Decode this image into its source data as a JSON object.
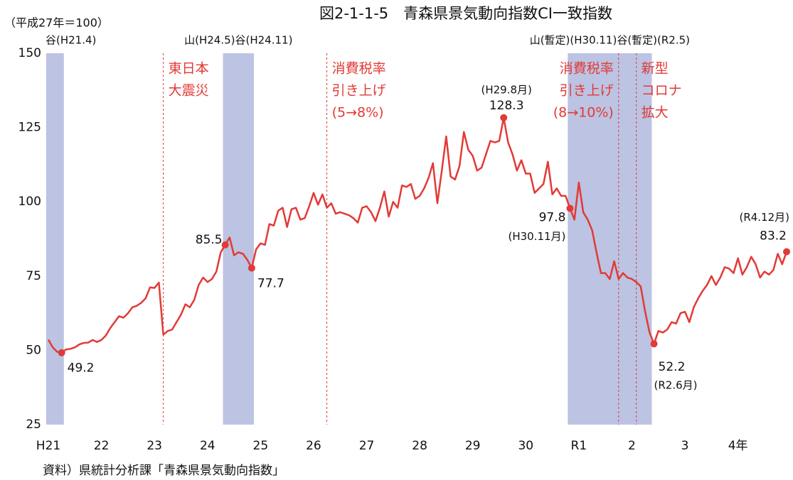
{
  "chart_data": {
    "type": "line",
    "title": "図2-1-1-5　青森県景気動向指数CI一致指数",
    "unit_label": "（平成27年＝100）",
    "source": "資料）県統計分析課「青森県景気動向指数」",
    "color": "#e23a36",
    "categories": [
      "H21",
      null,
      null,
      null,
      null,
      null,
      null,
      null,
      null,
      null,
      null,
      null,
      "22",
      null,
      null,
      null,
      null,
      null,
      null,
      null,
      null,
      null,
      null,
      null,
      "23",
      null,
      null,
      null,
      null,
      null,
      null,
      null,
      null,
      null,
      null,
      null,
      "24",
      null,
      null,
      null,
      null,
      null,
      null,
      null,
      null,
      null,
      null,
      null,
      "25",
      null,
      null,
      null,
      null,
      null,
      null,
      null,
      null,
      null,
      null,
      null,
      "26",
      null,
      null,
      null,
      null,
      null,
      null,
      null,
      null,
      null,
      null,
      null,
      "27",
      null,
      null,
      null,
      null,
      null,
      null,
      null,
      null,
      null,
      null,
      null,
      "28",
      null,
      null,
      null,
      null,
      null,
      null,
      null,
      null,
      null,
      null,
      null,
      "29",
      null,
      null,
      null,
      null,
      null,
      null,
      null,
      null,
      null,
      null,
      null,
      "30",
      null,
      null,
      null,
      null,
      null,
      null,
      null,
      null,
      null,
      null,
      null,
      "R1",
      null,
      null,
      null,
      null,
      null,
      null,
      null,
      null,
      null,
      null,
      null,
      "2",
      null,
      null,
      null,
      null,
      null,
      null,
      null,
      null,
      null,
      null,
      null,
      "3",
      null,
      null,
      null,
      null,
      null,
      null,
      null,
      null,
      null,
      null,
      null,
      "4年",
      null,
      null,
      null,
      null,
      null,
      null,
      null,
      null,
      null,
      null,
      null
    ],
    "values": [
      53.6,
      51.0,
      49.5,
      49.2,
      50.3,
      50.5,
      51.0,
      52.0,
      52.5,
      52.6,
      53.5,
      52.8,
      53.5,
      55.0,
      57.5,
      59.5,
      61.5,
      61.0,
      62.5,
      64.5,
      65.0,
      66.0,
      67.5,
      71.2,
      71.0,
      72.8,
      55.3,
      56.5,
      57.0,
      59.5,
      62.0,
      65.5,
      64.5,
      67.0,
      72.0,
      74.5,
      73.0,
      74.0,
      76.5,
      83.0,
      85.5,
      88.0,
      82.0,
      83.0,
      82.5,
      80.5,
      77.7,
      84.0,
      86.0,
      85.5,
      92.5,
      92.0,
      97.0,
      98.0,
      91.5,
      97.5,
      98.0,
      94.0,
      94.5,
      98.5,
      103.0,
      99.0,
      102.5,
      98.0,
      99.5,
      96.0,
      96.5,
      96.0,
      95.5,
      94.5,
      93.0,
      98.0,
      98.5,
      96.5,
      93.5,
      98.0,
      103.5,
      95.0,
      100.0,
      98.0,
      105.5,
      105.0,
      106.0,
      101.0,
      102.0,
      104.5,
      108.0,
      113.0,
      99.5,
      110.5,
      122.0,
      108.5,
      107.5,
      112.0,
      123.5,
      117.5,
      115.5,
      110.5,
      111.5,
      116.0,
      120.5,
      120.0,
      120.5,
      128.3,
      120.0,
      116.0,
      110.5,
      114.0,
      109.5,
      109.5,
      103.0,
      104.5,
      106.0,
      113.5,
      102.5,
      104.5,
      102.0,
      102.0,
      97.8,
      94.0,
      106.5,
      96.5,
      94.0,
      90.5,
      83.0,
      76.0,
      76.0,
      74.0,
      80.0,
      74.0,
      76.0,
      74.5,
      74.0,
      73.0,
      71.5,
      63.0,
      56.0,
      52.2,
      56.5,
      56.0,
      57.0,
      59.5,
      59.0,
      62.5,
      63.0,
      59.5,
      64.5,
      67.5,
      70.0,
      72.0,
      75.0,
      72.0,
      74.5,
      78.0,
      77.5,
      76.0,
      81.0,
      75.5,
      78.0,
      81.5,
      79.0,
      74.5,
      76.5,
      75.5,
      77.0,
      82.5,
      79.0,
      83.2
    ],
    "ylim": [
      25,
      150
    ],
    "yticks": [
      25,
      50,
      75,
      100,
      125,
      150
    ],
    "shading": {
      "color": "#bcc3e3",
      "regions": [
        {
          "from": 0,
          "to": 3,
          "label": "谷(H21.4)"
        },
        {
          "from": 40,
          "to": 46,
          "label": "山(H24.5)谷(H24.11)"
        },
        {
          "from": 118,
          "to": 136,
          "label": "山(暫定)(H30.11)谷(暫定)(R2.5)"
        }
      ]
    },
    "events": [
      {
        "index": 26,
        "lines": [
          "東日本",
          "大震災"
        ]
      },
      {
        "index": 63,
        "lines": [
          "消費税率",
          "引き上げ",
          "(5→8%)"
        ]
      },
      {
        "index": 129,
        "lines": [
          "消費税率",
          "引き上げ",
          "(8→10%)"
        ]
      },
      {
        "index": 133,
        "lines": [
          "新型",
          "コロナ",
          "拡大"
        ]
      }
    ],
    "highlights": [
      {
        "index": 3
      },
      {
        "index": 40
      },
      {
        "index": 46
      },
      {
        "index": 103,
        "note": "(H29.8月)"
      },
      {
        "index": 118,
        "note": "(H30.11月)"
      },
      {
        "index": 137,
        "note": "(R2.6月)"
      },
      {
        "index": 167,
        "note": "(R4.12月)"
      }
    ]
  }
}
